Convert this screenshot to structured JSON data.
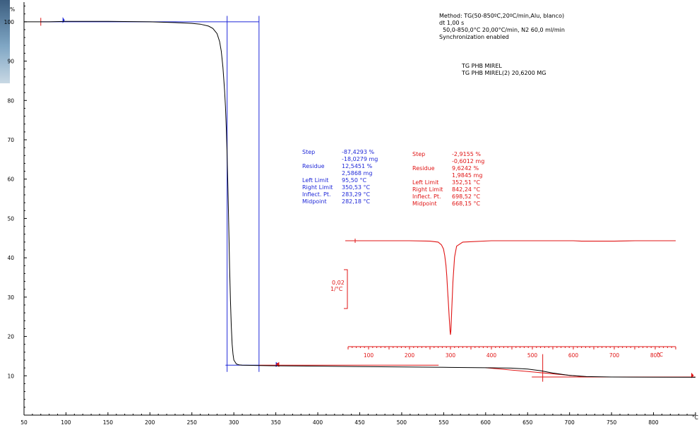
{
  "header": {
    "method_lines": [
      "Method: TG(50-850ºC,20ºC/min,Alu, blanco)",
      "dt 1,00 s",
      "  50,0-850,0°C 20,00°C/min, N2 60,0 ml/min",
      "Synchronization enabled"
    ],
    "sample_lines": [
      "TG PHB MIREL",
      "TG PHB MIREL(2) 20,6200 MG"
    ]
  },
  "results_blue": {
    "labels": [
      "Step",
      "",
      "Residue",
      "",
      "Left Limit",
      "Right Limit",
      "Inflect. Pt.",
      "Midpoint"
    ],
    "values": [
      "-87,4293 %",
      "-18,0279 mg",
      "12,5451 %",
      "2,5868 mg",
      "95,50 °C",
      "350,53 °C",
      "283,29 °C",
      "282,18 °C"
    ]
  },
  "results_red": {
    "labels": [
      "Step",
      "",
      "Residue",
      "",
      "Left Limit",
      "Right Limit",
      "Inflect. Pt.",
      "Midpoint"
    ],
    "values": [
      "-2,9155 %",
      "-0,6012 mg",
      "9,6242 %",
      "1,9845 mg",
      "352,51 °C",
      "842,24 °C",
      "698,52 °C",
      "668,15 °C"
    ]
  },
  "derivative_scale": {
    "value": "0,02",
    "unit": "1/°C"
  },
  "colors": {
    "tg_curve": "#000000",
    "blue_markers": "#1f28d8",
    "red_markers": "#e01414",
    "background": "#ffffff"
  },
  "chart_data": [
    {
      "type": "line",
      "title": "",
      "xlabel": "",
      "ylabel": "",
      "y_unit": "%",
      "x_unit": "°C",
      "xlim": [
        50,
        850
      ],
      "ylim": [
        0,
        105
      ],
      "xticks": [
        50,
        100,
        150,
        200,
        250,
        300,
        350,
        400,
        450,
        500,
        550,
        600,
        650,
        700,
        750,
        800
      ],
      "yticks": [
        10,
        20,
        30,
        40,
        50,
        60,
        70,
        80,
        90,
        100
      ],
      "grid": false,
      "series": [
        {
          "x": [
            50,
            80,
            100,
            150,
            200,
            230,
            250,
            260,
            270,
            275,
            280,
            283,
            285,
            287,
            289,
            290,
            291,
            292,
            293,
            294,
            295,
            296,
            297,
            298,
            299,
            300,
            303,
            306,
            310,
            330,
            350,
            400,
            450,
            500,
            550,
            600,
            630,
            650,
            665,
            680,
            700,
            720,
            750,
            800,
            850
          ],
          "y": [
            100,
            100,
            100.1,
            100.1,
            100,
            99.8,
            99.6,
            99.4,
            98.9,
            98.3,
            97.0,
            95.0,
            92.5,
            88.5,
            82.5,
            78.5,
            73.0,
            66.0,
            57.0,
            47.0,
            37.5,
            29.0,
            22.5,
            18.0,
            15.5,
            14.0,
            13.0,
            12.8,
            12.7,
            12.6,
            12.55,
            12.45,
            12.35,
            12.25,
            12.15,
            12.05,
            11.95,
            11.7,
            11.3,
            10.7,
            10.1,
            9.8,
            9.7,
            9.65,
            9.62
          ]
        }
      ]
    },
    {
      "type": "line",
      "title": "",
      "xlabel": "",
      "ylabel": "",
      "x_unit": "°C",
      "xlim": [
        50,
        850
      ],
      "xticks": [
        100,
        200,
        300,
        400,
        500,
        600,
        700,
        800
      ],
      "grid": false,
      "series": [
        {
          "x": [
            50,
            100,
            150,
            200,
            250,
            270,
            278,
            283,
            286,
            289,
            291,
            293,
            295,
            297,
            299,
            300,
            301,
            303,
            306,
            310,
            315,
            330,
            400,
            500,
            600,
            620,
            650,
            700,
            750,
            800,
            850
          ],
          "y": [
            0,
            0,
            0,
            0,
            -0.0003,
            -0.001,
            -0.003,
            -0.006,
            -0.011,
            -0.018,
            -0.026,
            -0.036,
            -0.046,
            -0.057,
            -0.066,
            -0.069,
            -0.066,
            -0.052,
            -0.03,
            -0.012,
            -0.004,
            -0.001,
            0,
            0,
            0,
            -0.0003,
            -0.0003,
            -0.0003,
            0,
            0,
            0
          ]
        }
      ]
    }
  ]
}
